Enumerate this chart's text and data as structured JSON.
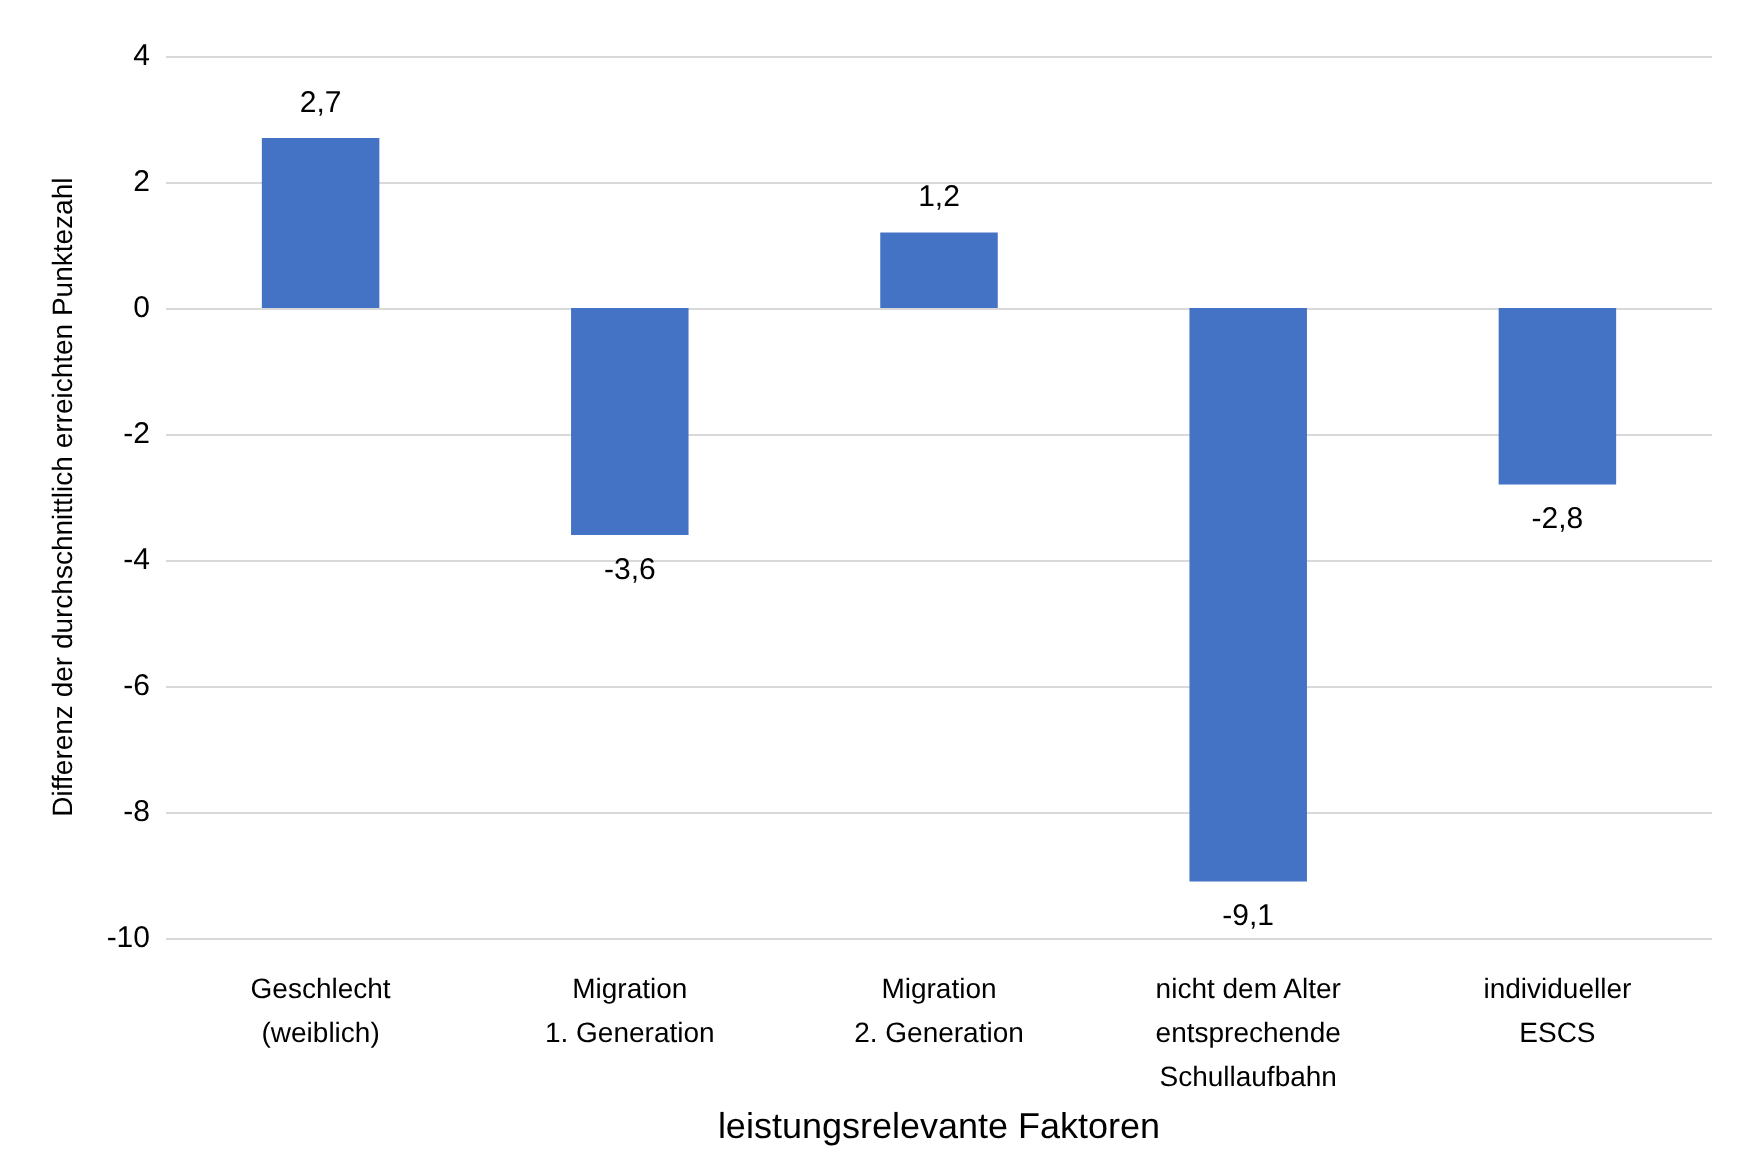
{
  "chart_data": {
    "type": "bar",
    "xlabel": "leistungsrelevante Faktoren",
    "ylabel": "Differenz der durchschnittlich erreichten Punktezahl",
    "categories": [
      "Geschlecht\n(weiblich)",
      "Migration\n1. Generation",
      "Migration\n2. Generation",
      "nicht dem Alter\nentsprechende\nSchullaufbahn",
      "individueller\nESCS"
    ],
    "values": [
      2.7,
      -3.6,
      1.2,
      -9.1,
      -2.8
    ],
    "value_labels": [
      "2,7",
      "-3,6",
      "1,2",
      "-9,1",
      "-2,8"
    ],
    "color": "#4472c4",
    "ylim": [
      -10,
      4
    ],
    "yticks": [
      -10,
      -8,
      -6,
      -4,
      -2,
      0,
      2,
      4
    ],
    "grid": "y"
  }
}
